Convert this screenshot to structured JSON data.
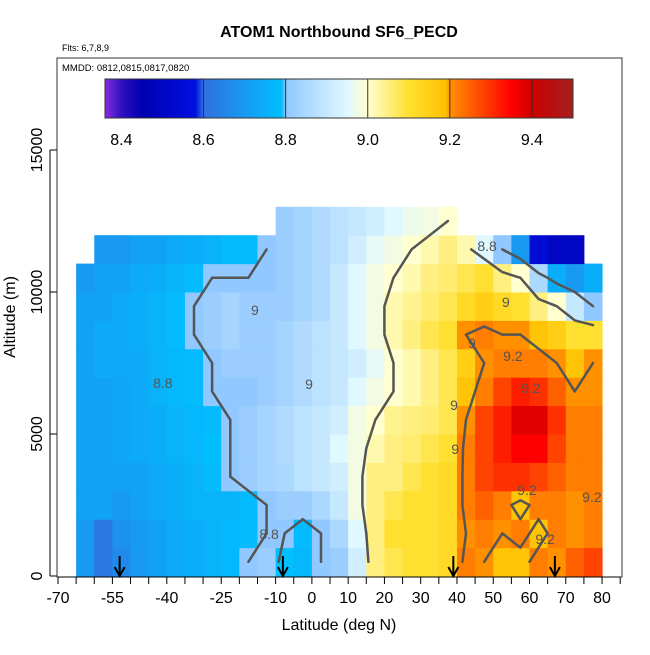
{
  "chart_data": {
    "type": "heatmap",
    "title": "ATOM1 Northbound SF6_PECD",
    "subtitle": "Flts: 6,7,8,9",
    "annotation": "MMDD: 0812,0815,0817,0820",
    "xlabel": "Latitude (deg N)",
    "ylabel": "Altitude (m)",
    "xlim": [
      -70,
      85
    ],
    "ylim": [
      0,
      18000
    ],
    "x_tick_labels": [
      "-70",
      "-55",
      "-40",
      "-25",
      "-10",
      "0",
      "10",
      "20",
      "30",
      "40",
      "50",
      "60",
      "70",
      "80"
    ],
    "y_tick_labels": [
      "0",
      "5000",
      "10000",
      "15000"
    ],
    "grid": false,
    "lat_bin_edges": [
      -65,
      -60,
      -55,
      -50,
      -45,
      -40,
      -35,
      -30,
      -25,
      -20,
      -15,
      -10,
      -5,
      0,
      5,
      10,
      15,
      20,
      25,
      30,
      35,
      40,
      45,
      50,
      55,
      60,
      65,
      70,
      75,
      80
    ],
    "alt_bin_edges": [
      0,
      1000,
      2000,
      3000,
      4000,
      5000,
      6000,
      7000,
      8000,
      9000,
      10000,
      11000,
      12000,
      13000
    ],
    "values": [
      [
        8.7,
        8.62,
        8.66,
        8.7,
        8.72,
        8.74,
        8.75,
        8.76,
        8.77,
        8.8,
        8.82,
        8.79,
        8.77,
        8.8,
        8.82,
        8.92,
        9.05,
        9.08,
        9.1,
        9.1,
        9.12,
        9.22,
        9.2,
        9.18,
        9.18,
        9.22,
        9.2,
        9.25,
        9.28
      ],
      [
        8.7,
        8.62,
        8.68,
        8.7,
        8.72,
        8.74,
        8.75,
        8.76,
        8.77,
        8.78,
        8.8,
        8.8,
        8.78,
        8.8,
        8.85,
        8.95,
        9.05,
        9.1,
        9.1,
        9.1,
        9.12,
        9.2,
        9.22,
        9.2,
        9.22,
        9.18,
        9.22,
        9.2,
        9.22
      ],
      [
        8.72,
        8.72,
        8.7,
        8.72,
        8.74,
        8.75,
        8.76,
        8.76,
        8.76,
        8.78,
        8.8,
        8.82,
        8.82,
        8.85,
        8.9,
        8.98,
        9.05,
        9.08,
        9.1,
        9.1,
        9.12,
        9.22,
        9.25,
        9.22,
        9.18,
        9.22,
        9.22,
        9.2,
        9.22
      ],
      [
        8.72,
        8.72,
        8.72,
        8.72,
        8.74,
        8.75,
        8.76,
        8.78,
        8.8,
        8.82,
        8.84,
        8.85,
        8.88,
        8.9,
        8.92,
        8.98,
        9.05,
        9.05,
        9.08,
        9.1,
        9.12,
        9.22,
        9.28,
        9.3,
        9.3,
        9.28,
        9.25,
        9.22,
        9.22
      ],
      [
        8.72,
        8.72,
        8.73,
        8.74,
        8.75,
        8.76,
        8.77,
        8.79,
        8.8,
        8.82,
        8.84,
        8.86,
        8.88,
        8.9,
        8.95,
        8.98,
        9.02,
        9.05,
        9.06,
        9.08,
        9.1,
        9.22,
        9.28,
        9.32,
        9.35,
        9.35,
        9.28,
        9.22,
        9.22
      ],
      [
        8.72,
        8.72,
        8.73,
        8.74,
        8.75,
        8.76,
        8.77,
        8.78,
        8.8,
        8.82,
        8.84,
        8.86,
        8.88,
        8.9,
        8.92,
        8.98,
        9.0,
        9.04,
        9.05,
        9.06,
        9.08,
        9.2,
        9.28,
        9.32,
        9.38,
        9.38,
        9.3,
        9.22,
        9.22
      ],
      [
        8.72,
        8.72,
        8.73,
        8.74,
        8.76,
        8.77,
        8.78,
        8.8,
        8.8,
        8.8,
        8.82,
        8.84,
        8.86,
        8.88,
        8.9,
        8.95,
        8.98,
        9.0,
        9.02,
        9.05,
        9.08,
        9.18,
        9.22,
        9.28,
        9.32,
        9.3,
        9.25,
        9.2,
        9.2
      ],
      [
        8.72,
        8.74,
        8.74,
        8.74,
        8.76,
        8.77,
        8.78,
        8.8,
        8.82,
        8.82,
        8.82,
        8.84,
        8.86,
        8.88,
        8.9,
        8.92,
        8.96,
        9.0,
        9.02,
        9.05,
        9.08,
        9.15,
        9.2,
        9.22,
        9.22,
        9.22,
        9.2,
        9.18,
        9.2
      ],
      [
        8.72,
        8.74,
        8.74,
        8.75,
        8.76,
        8.78,
        8.8,
        8.82,
        8.84,
        8.82,
        8.82,
        8.84,
        8.86,
        8.88,
        8.9,
        8.95,
        8.98,
        9.02,
        9.05,
        9.08,
        9.1,
        9.2,
        9.22,
        9.2,
        9.2,
        9.18,
        9.15,
        9.1,
        9.1
      ],
      [
        8.72,
        8.72,
        8.74,
        8.75,
        8.76,
        8.78,
        8.8,
        8.82,
        8.84,
        8.82,
        8.82,
        8.82,
        8.84,
        8.86,
        8.9,
        8.95,
        8.98,
        9.02,
        9.04,
        9.06,
        9.08,
        9.12,
        9.15,
        9.12,
        9.1,
        9.05,
        9.0,
        8.9,
        8.8
      ],
      [
        8.7,
        8.72,
        8.72,
        8.74,
        8.75,
        8.76,
        8.78,
        8.8,
        8.8,
        8.8,
        8.8,
        8.82,
        8.84,
        8.86,
        8.9,
        8.95,
        8.98,
        9.0,
        9.02,
        9.05,
        9.06,
        9.08,
        9.1,
        9.05,
        9.0,
        8.85,
        8.75,
        8.7,
        8.75
      ],
      [
        null,
        8.7,
        8.7,
        8.72,
        8.72,
        8.74,
        8.75,
        8.76,
        8.78,
        8.78,
        8.8,
        8.82,
        8.84,
        8.86,
        8.88,
        8.92,
        8.96,
        8.98,
        9.0,
        9.02,
        9.05,
        9.02,
        8.95,
        8.8,
        8.7,
        8.55,
        8.5,
        8.5,
        null
      ],
      [
        null,
        null,
        null,
        null,
        null,
        null,
        null,
        null,
        null,
        null,
        null,
        8.82,
        8.84,
        8.86,
        8.88,
        8.9,
        8.92,
        8.95,
        8.97,
        8.98,
        9.0,
        null,
        null,
        null,
        null,
        null,
        null,
        null,
        null
      ]
    ],
    "contour_levels": [
      8.8,
      9.0,
      9.2
    ],
    "contour_labels": [
      {
        "text": "8.8",
        "lat": 48.3,
        "alt": 11620
      },
      {
        "text": "9",
        "lat": 53.5,
        "alt": 9650
      },
      {
        "text": "9",
        "lat": -15.7,
        "alt": 9370
      },
      {
        "text": "9",
        "lat": 44.1,
        "alt": 8200
      },
      {
        "text": "9.2",
        "lat": 55.4,
        "alt": 7750
      },
      {
        "text": "8.8",
        "lat": -41.1,
        "alt": 6790
      },
      {
        "text": "9",
        "lat": -0.8,
        "alt": 6760
      },
      {
        "text": "9.2",
        "lat": 60.4,
        "alt": 6620
      },
      {
        "text": "9",
        "lat": 39.2,
        "alt": 6020
      },
      {
        "text": "9",
        "lat": 39.5,
        "alt": 4470
      },
      {
        "text": "9.2",
        "lat": 59.3,
        "alt": 3030
      },
      {
        "text": "9.2",
        "lat": 77.2,
        "alt": 2780
      },
      {
        "text": "8.8",
        "lat": -11.8,
        "alt": 1480
      },
      {
        "text": "9.2",
        "lat": 64.3,
        "alt": 1300
      }
    ],
    "flight_arrows_lat": [
      -53,
      -8,
      39,
      67
    ],
    "colorbar": {
      "range": [
        8.36,
        9.5
      ],
      "tick_labels": [
        "8.4",
        "8.6",
        "8.8",
        "9.0",
        "9.2",
        "9.4"
      ],
      "ticks": [
        8.4,
        8.6,
        8.8,
        9.0,
        9.2,
        9.4
      ],
      "stops": [
        [
          8.36,
          "#8a2be2"
        ],
        [
          8.4,
          "#3010c0"
        ],
        [
          8.45,
          "#0000b0"
        ],
        [
          8.58,
          "#0010e0"
        ],
        [
          8.6,
          "#3070e0"
        ],
        [
          8.79,
          "#00bfff"
        ],
        [
          8.8,
          "#90c8ff"
        ],
        [
          8.95,
          "#e0f8ff"
        ],
        [
          9.0,
          "#ffffd0"
        ],
        [
          9.1,
          "#ffe030"
        ],
        [
          9.19,
          "#ffc000"
        ],
        [
          9.2,
          "#ff9000"
        ],
        [
          9.35,
          "#ff0000"
        ],
        [
          9.4,
          "#cc0000"
        ],
        [
          9.5,
          "#a52020"
        ]
      ]
    },
    "contour_color": "#555555"
  }
}
